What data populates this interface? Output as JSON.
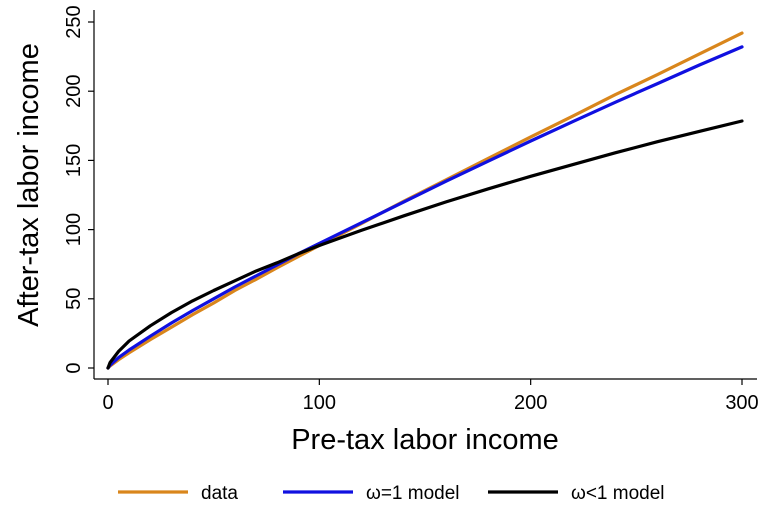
{
  "chart_data": {
    "type": "line",
    "title": "",
    "xlabel": "Pre-tax labor income",
    "ylabel": "After-tax labor income",
    "xlim": [
      0,
      300
    ],
    "ylim": [
      0,
      250
    ],
    "xticks": [
      0,
      100,
      200,
      300
    ],
    "yticks": [
      0,
      50,
      100,
      150,
      200,
      250
    ],
    "xtick_labels": [
      "0",
      "100",
      "200",
      "300"
    ],
    "ytick_labels": [
      "0",
      "50",
      "100",
      "150",
      "200",
      "250"
    ],
    "grid": false,
    "legend_position": "bottom",
    "x": [
      0,
      1,
      5,
      10,
      20,
      30,
      40,
      50,
      60,
      70,
      80,
      90,
      100,
      120,
      140,
      160,
      180,
      200,
      220,
      240,
      260,
      280,
      300
    ],
    "series": [
      {
        "name": "data",
        "color": "#D9861C",
        "values": [
          0,
          1.5,
          6,
          11,
          20.5,
          29.5,
          38.5,
          47,
          56,
          64,
          72.5,
          80.5,
          88.5,
          104.5,
          120.5,
          136,
          151.5,
          167,
          182,
          197.5,
          212,
          227,
          242
        ]
      },
      {
        "name": "ω=1 model",
        "color": "#1010E0",
        "values": [
          0,
          2,
          7.5,
          13,
          23,
          32.5,
          41.5,
          50,
          58.5,
          66.5,
          74.5,
          82.5,
          90,
          105,
          120,
          135,
          149.5,
          164,
          178,
          192,
          205.5,
          219,
          232
        ]
      },
      {
        "name": "ω<1 model",
        "color": "#000000",
        "values": [
          0,
          4,
          12,
          19.5,
          30.5,
          40,
          48.5,
          56,
          63,
          70,
          76,
          82.5,
          88.5,
          99.5,
          110,
          120,
          129.5,
          138.5,
          147,
          155.5,
          163.5,
          171,
          178.5
        ]
      }
    ]
  }
}
